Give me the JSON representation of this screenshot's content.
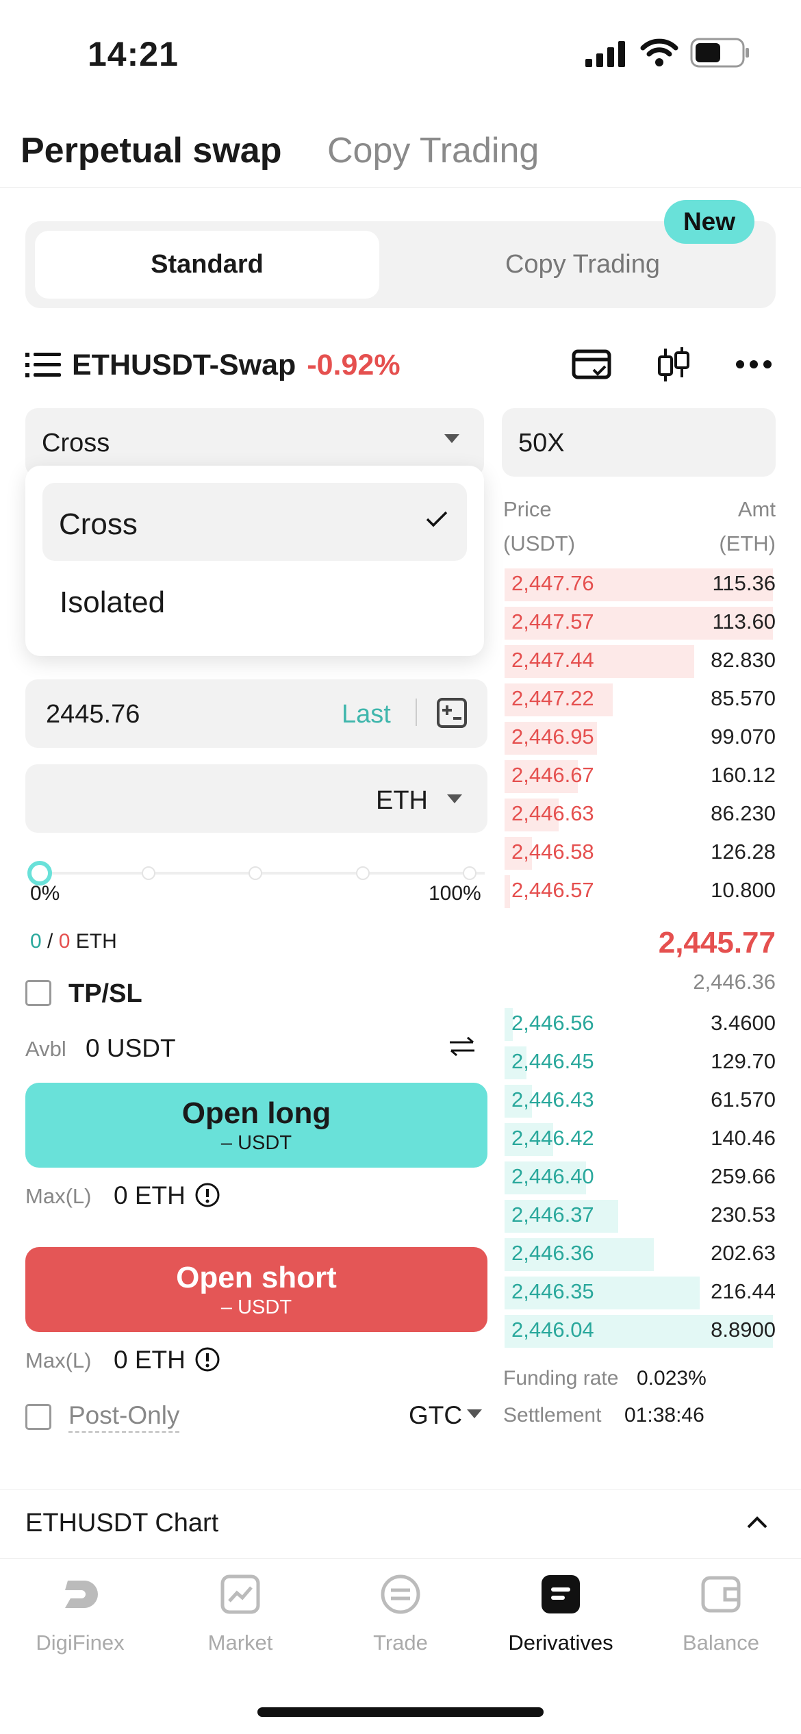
{
  "status_bar": {
    "time": "14:21"
  },
  "top_tabs": {
    "active": "Perpetual swap",
    "inactive": "Copy Trading"
  },
  "mode_switch": {
    "standard": "Standard",
    "copy": "Copy Trading",
    "badge": "New"
  },
  "pair": {
    "name": "ETHUSDT-Swap",
    "change": "-0.92%"
  },
  "margin_mode": {
    "selected": "Cross",
    "options": [
      "Cross",
      "Isolated"
    ]
  },
  "leverage": "50X",
  "price_input": {
    "value": "2445.76",
    "last_label": "Last"
  },
  "amount_input": {
    "unit": "ETH"
  },
  "slider": {
    "value_percent": 0,
    "min_label": "0%",
    "max_label": "100%"
  },
  "position": {
    "long": "0",
    "sep": " / ",
    "short": "0",
    "unit": "ETH"
  },
  "tpsl": {
    "label": "TP/SL"
  },
  "available": {
    "label": "Avbl",
    "value": "0 USDT"
  },
  "open_long": {
    "label": "Open long",
    "sub": "– USDT"
  },
  "max_long": {
    "label": "Max(L)",
    "value": "0 ETH"
  },
  "open_short": {
    "label": "Open short",
    "sub": "– USDT"
  },
  "max_short": {
    "label": "Max(L)",
    "value": "0 ETH"
  },
  "post_only": {
    "label": "Post-Only",
    "tif": "GTC"
  },
  "orderbook": {
    "price_header": "Price",
    "price_unit": "(USDT)",
    "amt_header": "Amt",
    "amt_unit": "(ETH)",
    "asks": [
      {
        "price": "2,447.76",
        "amt": "115.36",
        "depth": 0.99
      },
      {
        "price": "2,447.57",
        "amt": "113.60",
        "depth": 0.99
      },
      {
        "price": "2,447.44",
        "amt": "82.830",
        "depth": 0.7
      },
      {
        "price": "2,447.22",
        "amt": "85.570",
        "depth": 0.4
      },
      {
        "price": "2,446.95",
        "amt": "99.070",
        "depth": 0.34
      },
      {
        "price": "2,446.67",
        "amt": "160.12",
        "depth": 0.27
      },
      {
        "price": "2,446.63",
        "amt": "86.230",
        "depth": 0.2
      },
      {
        "price": "2,446.58",
        "amt": "126.28",
        "depth": 0.1
      },
      {
        "price": "2,446.57",
        "amt": "10.800",
        "depth": 0.02
      }
    ],
    "last_price": "2,445.77",
    "mark_price": "2,446.36",
    "bids": [
      {
        "price": "2,446.56",
        "amt": "3.4600",
        "depth": 0.03
      },
      {
        "price": "2,446.45",
        "amt": "129.70",
        "depth": 0.08
      },
      {
        "price": "2,446.43",
        "amt": "61.570",
        "depth": 0.1
      },
      {
        "price": "2,446.42",
        "amt": "140.46",
        "depth": 0.18
      },
      {
        "price": "2,446.40",
        "amt": "259.66",
        "depth": 0.3
      },
      {
        "price": "2,446.37",
        "amt": "230.53",
        "depth": 0.42
      },
      {
        "price": "2,446.36",
        "amt": "202.63",
        "depth": 0.55
      },
      {
        "price": "2,446.35",
        "amt": "216.44",
        "depth": 0.72
      },
      {
        "price": "2,446.04",
        "amt": "8.8900",
        "depth": 0.99
      }
    ]
  },
  "funding": {
    "label": "Funding rate",
    "value": "0.023%"
  },
  "settlement": {
    "label": "Settlement",
    "value": "01:38:46"
  },
  "chart_section": {
    "label": "ETHUSDT Chart"
  },
  "bottom_nav": [
    {
      "label": "DigiFinex",
      "icon": "digifinex-icon"
    },
    {
      "label": "Market",
      "icon": "market-icon"
    },
    {
      "label": "Trade",
      "icon": "trade-icon"
    },
    {
      "label": "Derivatives",
      "icon": "derivatives-icon"
    },
    {
      "label": "Balance",
      "icon": "wallet-icon"
    }
  ],
  "colors": {
    "long": "#69e1d9",
    "short": "#e45656",
    "ask": "#e5504f",
    "bid": "#2aa89c",
    "accent": "#3fb6ac"
  }
}
